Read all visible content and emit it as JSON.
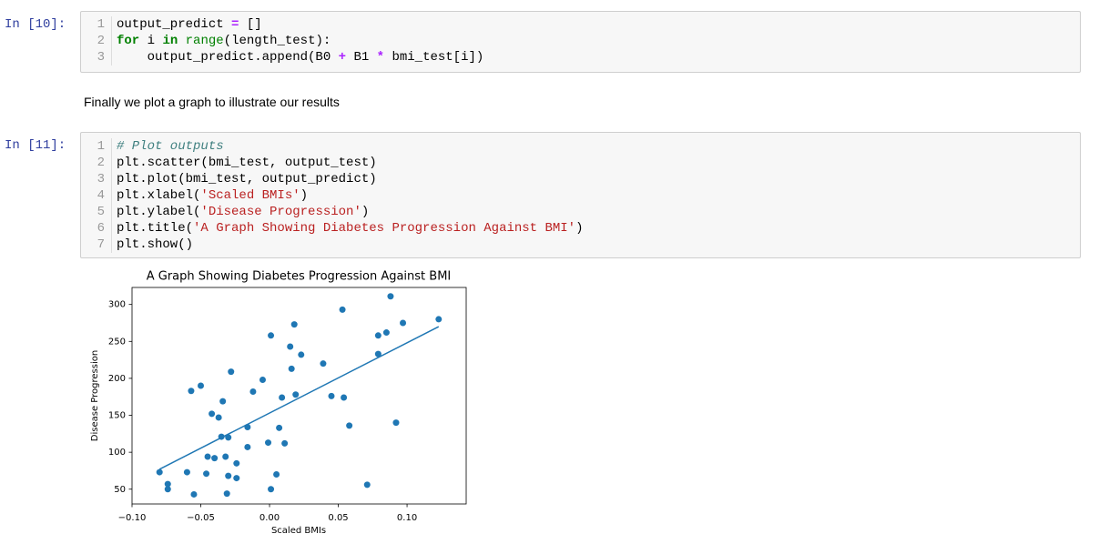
{
  "cell_1": {
    "prompt": "In [10]:",
    "lines": [
      {
        "number": 1,
        "tokens": [
          {
            "text": "output_predict ",
            "color": "#000000"
          },
          {
            "text": "=",
            "color": "#aa22ff",
            "bold": true
          },
          {
            "text": " []",
            "color": "#000000"
          }
        ]
      },
      {
        "number": 2,
        "tokens": [
          {
            "text": "for",
            "color": "#008000",
            "bold": true
          },
          {
            "text": " i ",
            "color": "#000000"
          },
          {
            "text": "in",
            "color": "#008000",
            "bold": true
          },
          {
            "text": " ",
            "color": "#000000"
          },
          {
            "text": "range",
            "color": "#008000"
          },
          {
            "text": "(length_test):",
            "color": "#000000"
          }
        ]
      },
      {
        "number": 3,
        "tokens": [
          {
            "text": "    output_predict.append(B0 ",
            "color": "#000000"
          },
          {
            "text": "+",
            "color": "#aa22ff",
            "bold": true
          },
          {
            "text": " B1 ",
            "color": "#000000"
          },
          {
            "text": "*",
            "color": "#aa22ff",
            "bold": true
          },
          {
            "text": " bmi_test[i])",
            "color": "#000000"
          }
        ]
      }
    ]
  },
  "markdown": {
    "text": "Finally we plot a graph to illustrate our results"
  },
  "cell_2": {
    "prompt": "In [11]:",
    "lines": [
      {
        "number": 1,
        "tokens": [
          {
            "text": "# Plot outputs",
            "color": "#408080",
            "italic": true
          }
        ]
      },
      {
        "number": 2,
        "tokens": [
          {
            "text": "plt.scatter(bmi_test, output_test)",
            "color": "#000000"
          }
        ]
      },
      {
        "number": 3,
        "tokens": [
          {
            "text": "plt.plot(bmi_test, output_predict)",
            "color": "#000000"
          }
        ]
      },
      {
        "number": 4,
        "tokens": [
          {
            "text": "plt.xlabel(",
            "color": "#000000"
          },
          {
            "text": "'Scaled BMIs'",
            "color": "#ba2121"
          },
          {
            "text": ")",
            "color": "#000000"
          }
        ]
      },
      {
        "number": 5,
        "tokens": [
          {
            "text": "plt.ylabel(",
            "color": "#000000"
          },
          {
            "text": "'Disease Progression'",
            "color": "#ba2121"
          },
          {
            "text": ")",
            "color": "#000000"
          }
        ]
      },
      {
        "number": 6,
        "tokens": [
          {
            "text": "plt.title(",
            "color": "#000000"
          },
          {
            "text": "'A Graph Showing Diabetes Progression Against BMI'",
            "color": "#ba2121"
          },
          {
            "text": ")",
            "color": "#000000"
          }
        ]
      },
      {
        "number": 7,
        "tokens": [
          {
            "text": "plt.show()",
            "color": "#000000"
          }
        ]
      }
    ]
  },
  "chart_data": {
    "type": "scatter",
    "title": "A Graph Showing Diabetes Progression Against BMI",
    "x_label": "Scaled BMIs",
    "y_label": "Disease Progression",
    "xlim": [
      -0.1,
      0.143
    ],
    "ylim": [
      30,
      323
    ],
    "xticks": [
      {
        "value": -0.1,
        "label": "−0.10"
      },
      {
        "value": -0.05,
        "label": "−0.05"
      },
      {
        "value": 0,
        "label": "0.00"
      },
      {
        "value": 0.05,
        "label": "0.05"
      },
      {
        "value": 0.1,
        "label": "0.10"
      }
    ],
    "yticks": [
      50,
      100,
      150,
      200,
      250,
      300
    ],
    "grid": false,
    "series": [
      {
        "type": "scatter",
        "color": "#1f77b4",
        "x": [
          -0.08,
          -0.074,
          -0.074,
          -0.06,
          -0.055,
          -0.057,
          -0.05,
          -0.046,
          -0.045,
          -0.042,
          -0.04,
          -0.037,
          -0.034,
          -0.035,
          -0.032,
          -0.03,
          -0.031,
          -0.03,
          -0.028,
          -0.024,
          -0.024,
          -0.016,
          -0.016,
          -0.012,
          -0.005,
          -0.001,
          0.001,
          0.001,
          0.005,
          0.007,
          0.009,
          0.011,
          0.015,
          0.016,
          0.018,
          0.019,
          0.023,
          0.039,
          0.045,
          0.053,
          0.054,
          0.058,
          0.071,
          0.079,
          0.079,
          0.085,
          0.088,
          0.092,
          0.097,
          0.123
        ],
        "values": [
          73,
          57,
          50,
          73,
          43,
          183,
          190,
          71,
          94,
          152,
          92,
          147,
          169,
          121,
          94,
          120,
          44,
          68,
          209,
          85,
          65,
          134,
          107,
          182,
          198,
          113,
          258,
          50,
          70,
          133,
          174,
          112,
          243,
          213,
          273,
          178,
          232,
          220,
          176,
          293,
          174,
          136,
          56,
          233,
          258,
          262,
          311,
          140,
          275,
          280
        ]
      },
      {
        "type": "line",
        "color": "#1f77b4",
        "x": [
          -0.08,
          0.123
        ],
        "values": [
          77,
          270
        ]
      }
    ]
  }
}
